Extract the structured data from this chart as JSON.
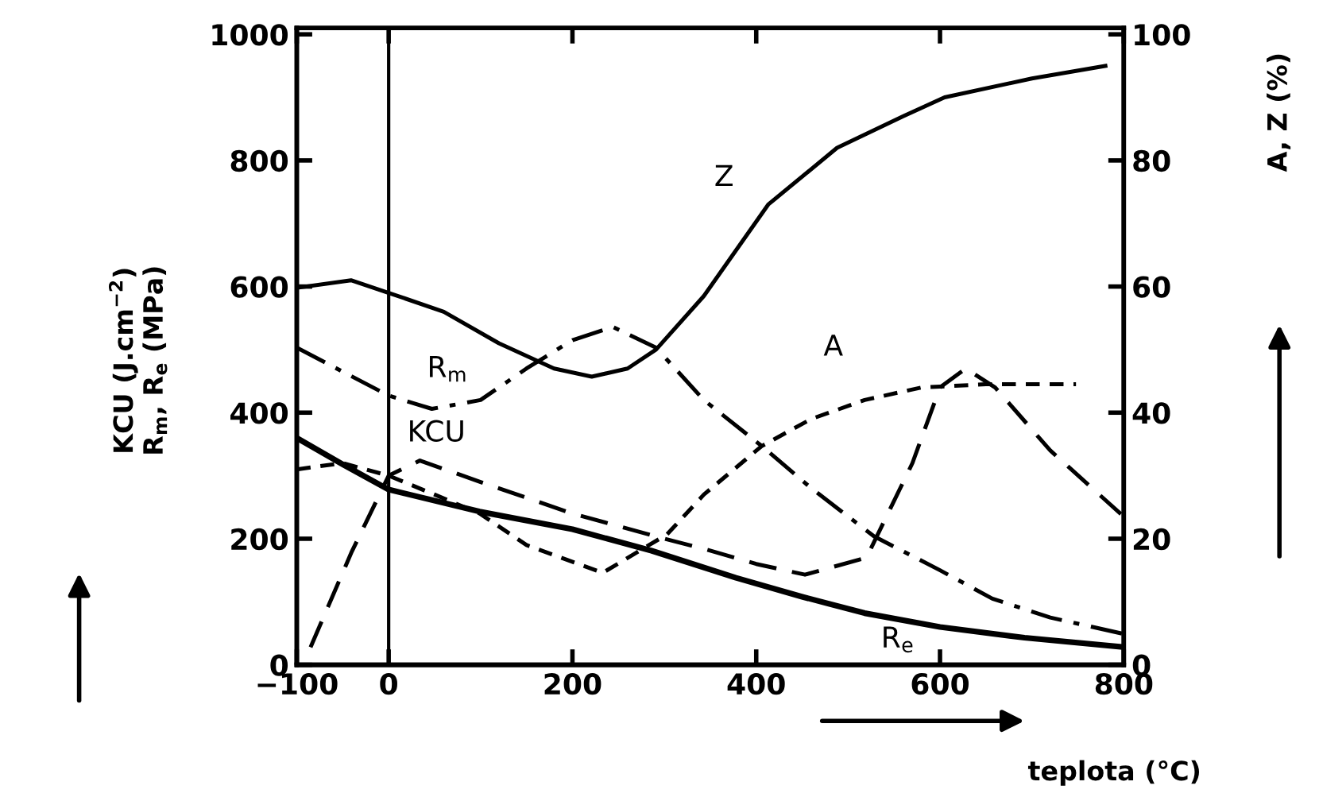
{
  "chart_data": {
    "type": "line",
    "xlabel": "teplota (°C)",
    "ylabel": "KCU (J.cm$^{−2}$)\nR$_{m}$, R$_{e}$ (MPa)",
    "y2label": "A, Z (%)",
    "xlim": [
      -100,
      800
    ],
    "xticks": [
      {
        "value": -100,
        "label": "−100"
      },
      0,
      200,
      400,
      600,
      800
    ],
    "ylim": [
      0,
      1010
    ],
    "yticks": [
      0,
      200,
      400,
      600,
      800,
      1000
    ],
    "y2lim": [
      0,
      101
    ],
    "y2ticks": [
      0,
      20,
      40,
      60,
      80,
      100
    ],
    "grid": false,
    "legend": false,
    "marker": "none",
    "ref_lines": [
      {
        "axis": "x",
        "value": 0,
        "color": "#000000"
      }
    ],
    "series": [
      {
        "name": "Z",
        "color": "#000000",
        "line_style": "solid",
        "axis": "y2",
        "x": [
          -100,
          -41,
          0,
          60,
          120,
          180,
          221,
          260,
          291,
          343,
          413,
          488,
          560,
          605,
          700,
          780
        ],
        "values": [
          59.8,
          61,
          59,
          56,
          51,
          47,
          45.7,
          47,
          50,
          58.5,
          73,
          82,
          87,
          90,
          93,
          95
        ]
      },
      {
        "name": "R$_{m}$",
        "color": "#000000",
        "line_style": "dashdot",
        "axis": "y",
        "x": [
          -100,
          -50,
          0,
          47,
          100,
          150,
          200,
          244,
          291,
          343,
          406,
          460,
          528,
          600,
          657,
          720,
          800
        ],
        "values": [
          503,
          465,
          427,
          406,
          420,
          470,
          515,
          536,
          503,
          420,
          347,
          280,
          204,
          150,
          105,
          75,
          49
        ]
      },
      {
        "name": "A",
        "color": "#000000",
        "line_style": "dotted",
        "axis": "y2",
        "x": [
          -100,
          -50,
          0,
          50,
          99,
          150,
          233,
          303,
          343,
          406,
          460,
          518,
          580,
          650,
          748
        ],
        "values": [
          31,
          32,
          30,
          27,
          24,
          19,
          14.6,
          20.7,
          27,
          34.7,
          39,
          42,
          44,
          44.5,
          44.5
        ]
      },
      {
        "name": "KCU",
        "color": "#000000",
        "line_style": "dashed",
        "axis": "y",
        "x": [
          -85,
          -40,
          0,
          34,
          100,
          200,
          300,
          343,
          400,
          453,
          520,
          570,
          600,
          628,
          660,
          720,
          800
        ],
        "values": [
          28,
          180,
          300,
          324,
          290,
          240,
          200,
          184,
          160,
          143,
          170,
          320,
          440,
          470,
          440,
          340,
          235
        ]
      },
      {
        "name": "R$_{e}$",
        "color": "#000000",
        "line_style": "solid",
        "axis": "y",
        "x": [
          -100,
          -50,
          0,
          99,
          200,
          286,
          378,
          450,
          518,
          600,
          692,
          800
        ],
        "values": [
          360,
          318,
          278,
          243,
          215,
          181,
          138,
          108,
          82,
          60,
          43,
          28
        ]
      }
    ]
  }
}
